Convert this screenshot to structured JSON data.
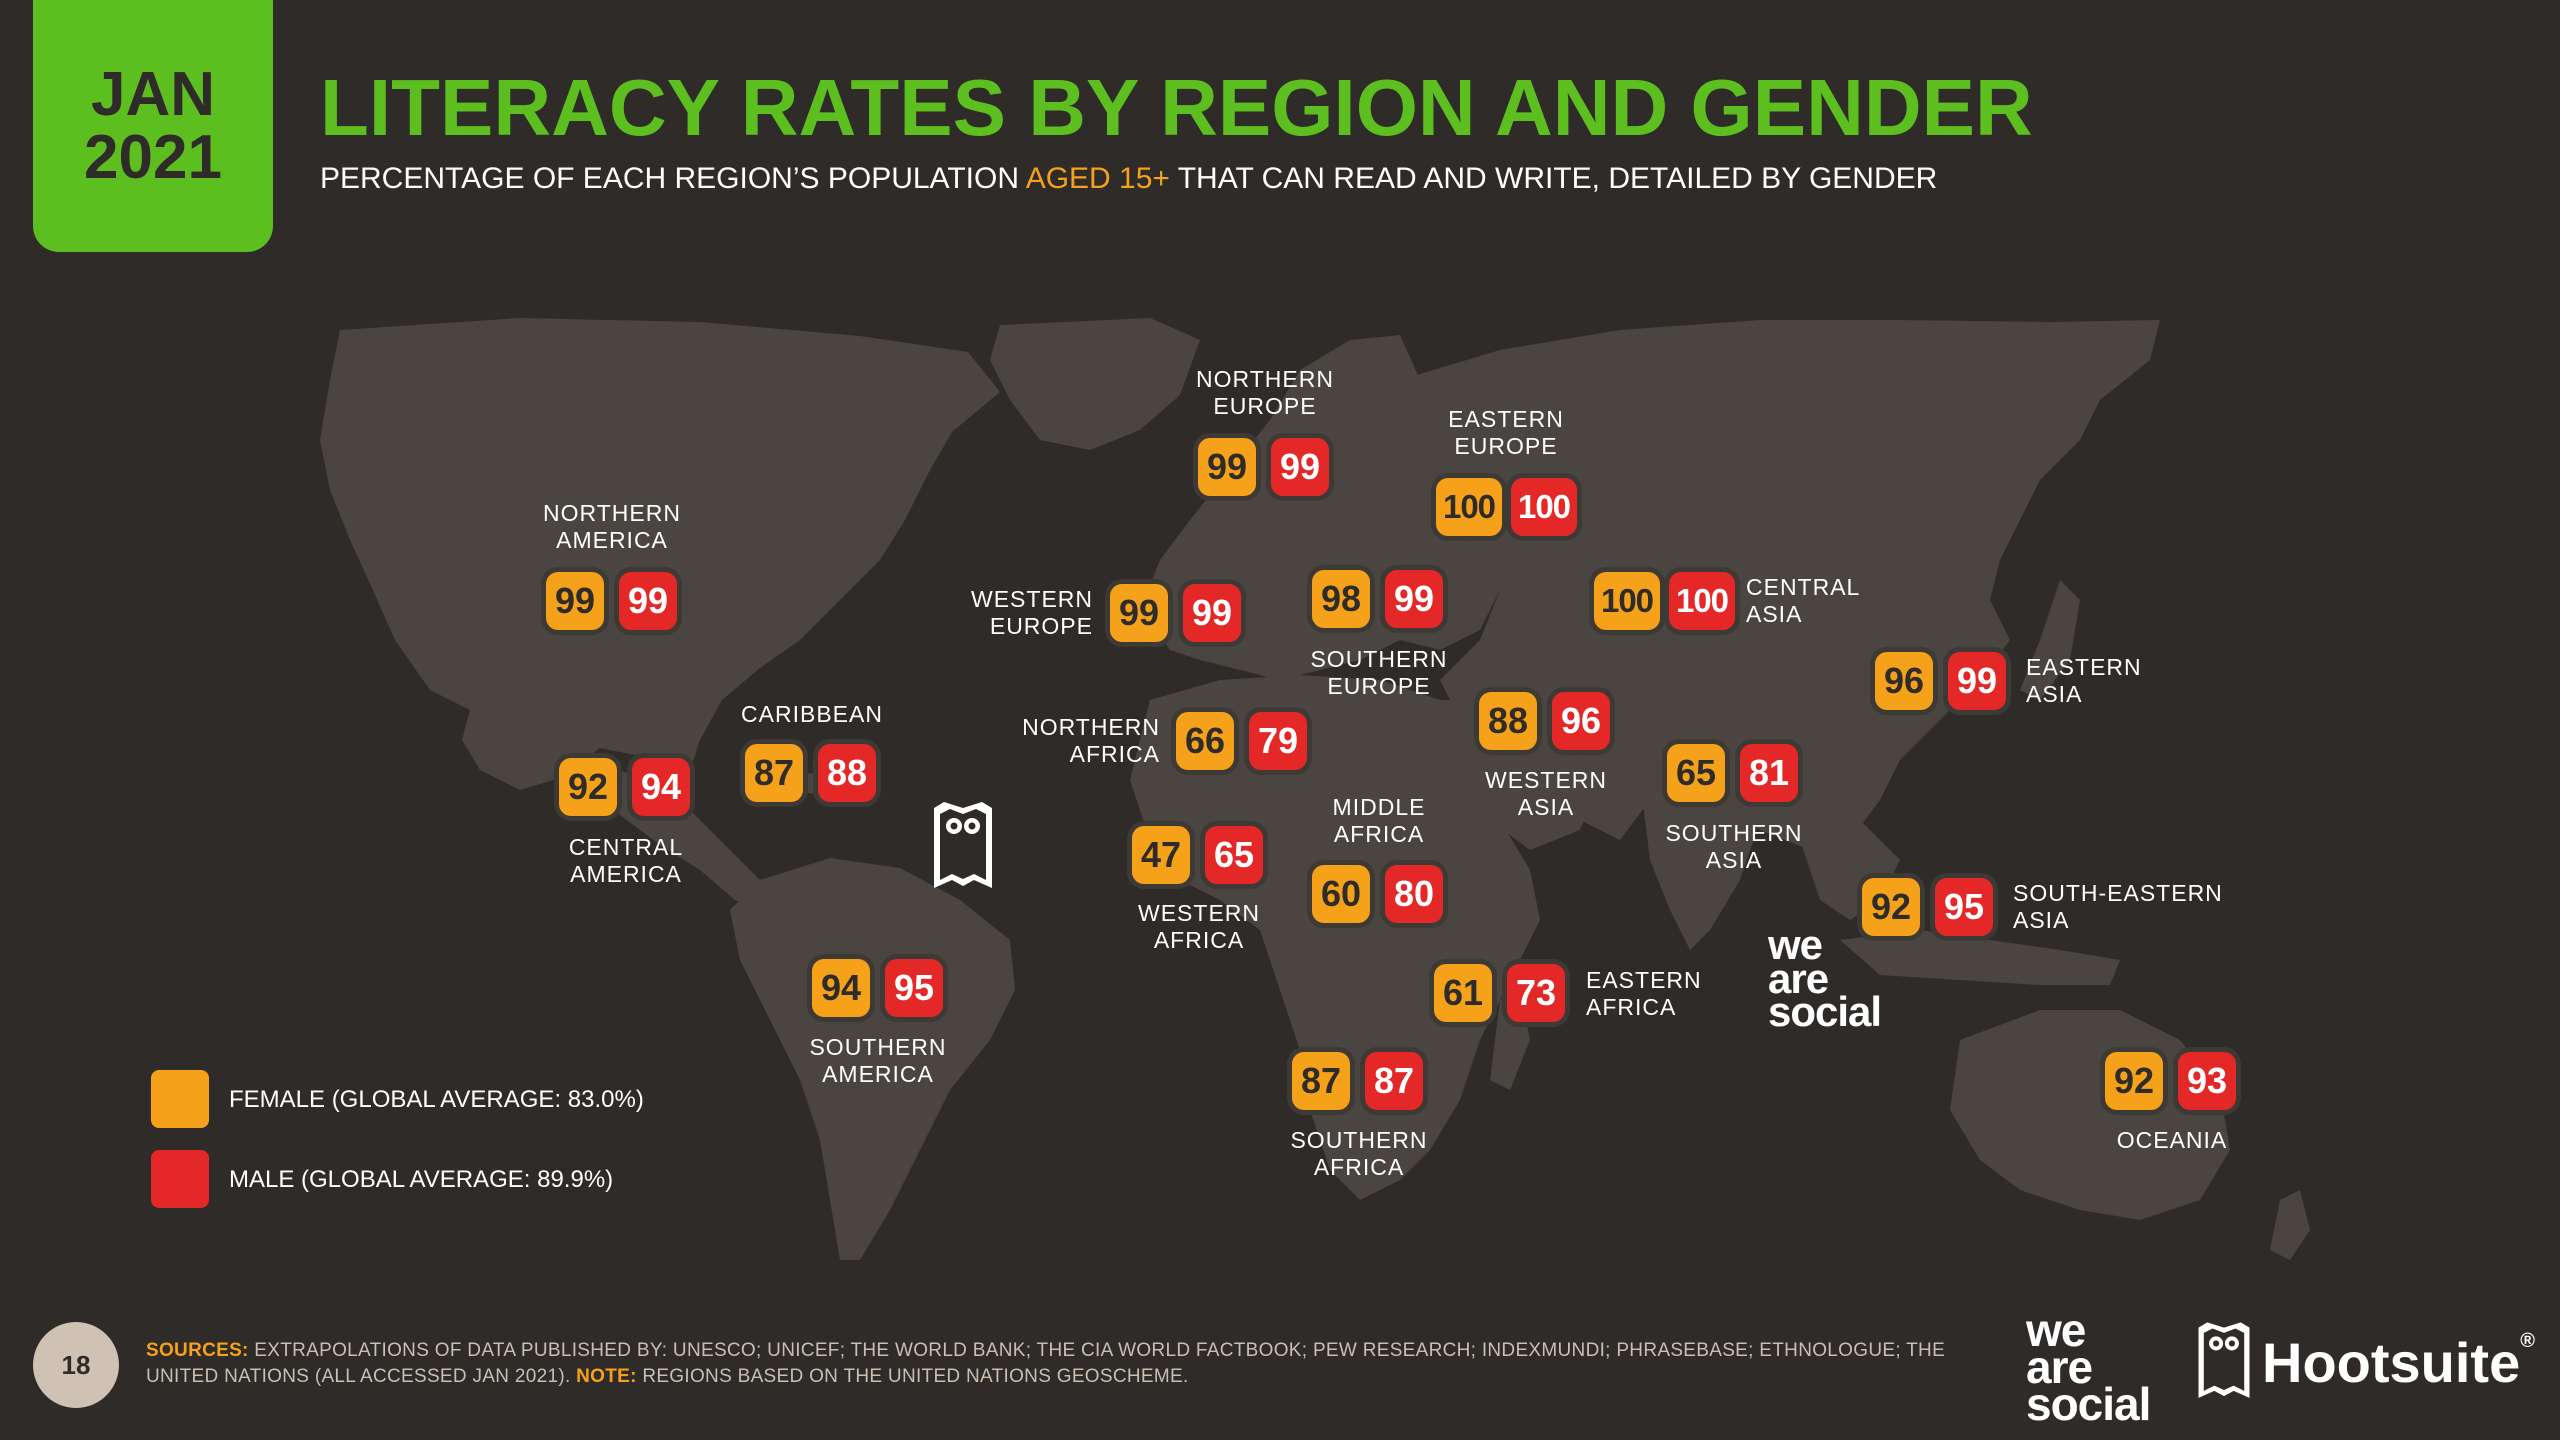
{
  "header": {
    "date_month": "JAN",
    "date_year": "2021",
    "title": "LITERACY RATES BY REGION AND GENDER",
    "subtitle_pre": "PERCENTAGE OF EACH REGION’S POPULATION ",
    "subtitle_hl": "AGED 15+",
    "subtitle_post": " THAT CAN READ AND WRITE, DETAILED BY GENDER"
  },
  "colors": {
    "background": "#2e2b28",
    "map_land": "#4a4541",
    "accent_green": "#5cbf1f",
    "female": "#f5a21a",
    "male": "#e42727"
  },
  "regions": {
    "northern_america": {
      "label1": "NORTHERN",
      "label2": "AMERICA",
      "female": "99",
      "male": "99"
    },
    "central_america": {
      "label1": "CENTRAL",
      "label2": "AMERICA",
      "female": "92",
      "male": "94"
    },
    "caribbean": {
      "label1": "CARIBBEAN",
      "female": "87",
      "male": "88"
    },
    "southern_america": {
      "label1": "SOUTHERN",
      "label2": "AMERICA",
      "female": "94",
      "male": "95"
    },
    "northern_europe": {
      "label1": "NORTHERN",
      "label2": "EUROPE",
      "female": "99",
      "male": "99"
    },
    "western_europe": {
      "label1": "WESTERN",
      "label2": "EUROPE",
      "female": "99",
      "male": "99"
    },
    "southern_europe": {
      "label1": "SOUTHERN",
      "label2": "EUROPE",
      "female": "98",
      "male": "99"
    },
    "eastern_europe": {
      "label1": "EASTERN",
      "label2": "EUROPE",
      "female": "100",
      "male": "100"
    },
    "northern_africa": {
      "label1": "NORTHERN",
      "label2": "AFRICA",
      "female": "66",
      "male": "79"
    },
    "western_africa": {
      "label1": "WESTERN",
      "label2": "AFRICA",
      "female": "47",
      "male": "65"
    },
    "middle_africa": {
      "label1": "MIDDLE",
      "label2": "AFRICA",
      "female": "60",
      "male": "80"
    },
    "eastern_africa": {
      "label1": "EASTERN",
      "label2": "AFRICA",
      "female": "61",
      "male": "73"
    },
    "southern_africa": {
      "label1": "SOUTHERN",
      "label2": "AFRICA",
      "female": "87",
      "male": "87"
    },
    "western_asia": {
      "label1": "WESTERN",
      "label2": "ASIA",
      "female": "88",
      "male": "96"
    },
    "central_asia": {
      "label1": "CENTRAL",
      "label2": "ASIA",
      "female": "100",
      "male": "100"
    },
    "southern_asia": {
      "label1": "SOUTHERN",
      "label2": "ASIA",
      "female": "65",
      "male": "81"
    },
    "eastern_asia": {
      "label1": "EASTERN",
      "label2": "ASIA",
      "female": "96",
      "male": "99"
    },
    "south_eastern_asia": {
      "label1": "SOUTH-EASTERN",
      "label2": "ASIA",
      "female": "92",
      "male": "95"
    },
    "oceania": {
      "label1": "OCEANIA",
      "female": "92",
      "male": "93"
    }
  },
  "legend": {
    "female_label": "FEMALE (GLOBAL AVERAGE: 83.0%)",
    "male_label": "MALE (GLOBAL AVERAGE: 89.9%)",
    "female_global_avg": 83.0,
    "male_global_avg": 89.9
  },
  "footer": {
    "page_number": "18",
    "sources_key": "SOURCES:",
    "sources_text": " EXTRAPOLATIONS OF DATA PUBLISHED BY: UNESCO; UNICEF; THE WORLD BANK; THE CIA WORLD FACTBOOK; PEW RESEARCH; INDEXMUNDI; PHRASEBASE; ETHNOLOGUE; THE UNITED NATIONS (ALL ACCESSED JAN 2021). ",
    "note_key": "NOTE:",
    "note_text": " REGIONS BASED ON THE UNITED NATIONS GEOSCHEME.",
    "brand_was_1": "we",
    "brand_was_2": "are",
    "brand_was_3": "social",
    "brand_hootsuite": "Hootsuite",
    "brand_hootsuite_mark": "®"
  },
  "icons": {
    "map": "world-map",
    "owl": "hootsuite-owl-icon"
  }
}
